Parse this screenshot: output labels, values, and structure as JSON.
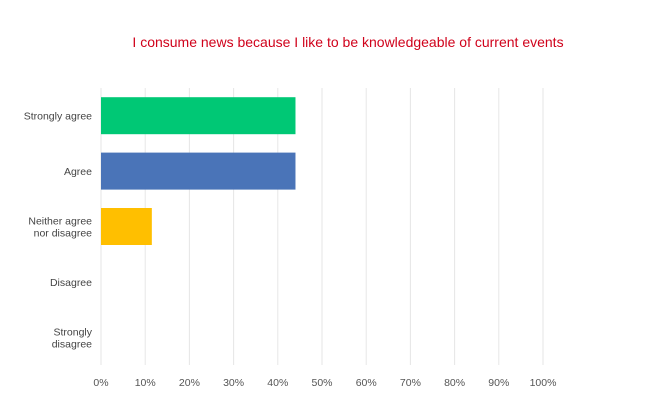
{
  "chart_data": {
    "type": "bar",
    "orientation": "horizontal",
    "title": "I consume news because I like to be knowledgeable of current events",
    "title_color": "#d0021b",
    "categories": [
      [
        "Strongly agree"
      ],
      [
        "Agree"
      ],
      [
        "Neither agree",
        "nor disagree"
      ],
      [
        "Disagree"
      ],
      [
        "Strongly",
        "disagree"
      ]
    ],
    "values": [
      44,
      44,
      11.5,
      0,
      0
    ],
    "bar_colors": [
      "#00c875",
      "#4a74b8",
      "#ffbf00",
      "#cccccc",
      "#cccccc"
    ],
    "xlim": [
      0,
      100
    ],
    "x_ticks": [
      0,
      10,
      20,
      30,
      40,
      50,
      60,
      70,
      80,
      90,
      100
    ],
    "x_tick_labels": [
      "0%",
      "10%",
      "20%",
      "30%",
      "40%",
      "50%",
      "60%",
      "70%",
      "80%",
      "90%",
      "100%"
    ],
    "grid": true,
    "xlabel": "",
    "ylabel": ""
  }
}
